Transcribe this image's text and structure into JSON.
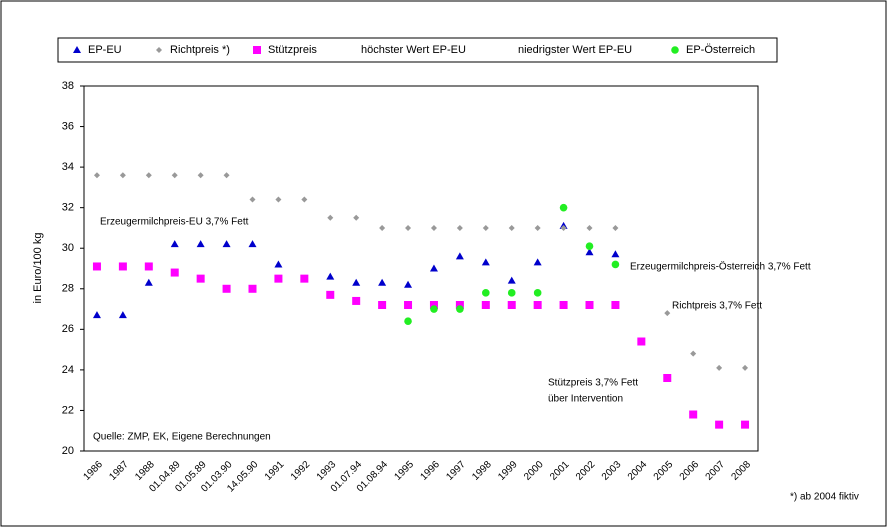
{
  "chart_data": {
    "type": "scatter",
    "y_label": "in Euro/100 kg",
    "categories": [
      "1986",
      "1987",
      "1988",
      "01.04.89",
      "01.05.89",
      "01.03.90",
      "14.05.90",
      "1991",
      "1992",
      "1993",
      "01.07.94",
      "01.08.94",
      "1995",
      "1996",
      "1997",
      "1998",
      "1999",
      "2000",
      "2001",
      "2002",
      "2003",
      "2004",
      "2005",
      "2006",
      "2007",
      "2008"
    ],
    "series": [
      {
        "name": "EP-EU",
        "color": "#0000cc",
        "marker": "triangle",
        "values": [
          26.7,
          26.7,
          28.3,
          30.2,
          30.2,
          30.2,
          30.2,
          29.2,
          null,
          28.6,
          28.3,
          28.3,
          28.2,
          29.0,
          29.6,
          29.3,
          28.4,
          29.3,
          31.1,
          29.8,
          29.7,
          null,
          null,
          null,
          null,
          null
        ]
      },
      {
        "name": "Richtpreis *)",
        "color": "#999999",
        "marker": "diamond",
        "values": [
          33.6,
          33.6,
          33.6,
          33.6,
          33.6,
          33.6,
          32.4,
          32.4,
          32.4,
          31.5,
          31.5,
          31.0,
          31.0,
          31.0,
          31.0,
          31.0,
          31.0,
          31.0,
          31.0,
          31.0,
          31.0,
          null,
          26.8,
          24.8,
          24.1,
          24.1
        ]
      },
      {
        "name": "Stützpreis",
        "color": "#ff00ff",
        "marker": "square",
        "values": [
          29.1,
          29.1,
          29.1,
          28.8,
          28.5,
          28.0,
          28.0,
          28.5,
          28.5,
          27.7,
          27.4,
          27.2,
          27.2,
          27.2,
          27.2,
          27.2,
          27.2,
          27.2,
          27.2,
          27.2,
          27.2,
          25.4,
          23.6,
          21.8,
          21.3,
          21.3
        ]
      },
      {
        "name": "höchster Wert EP-EU",
        "values": [
          null,
          null,
          null,
          null,
          null,
          null,
          null,
          null,
          null,
          null,
          null,
          null,
          null,
          null,
          null,
          null,
          null,
          null,
          null,
          null,
          null,
          null,
          null,
          null,
          null,
          null
        ]
      },
      {
        "name": "niedrigster Wert EP-EU",
        "values": [
          null,
          null,
          null,
          null,
          null,
          null,
          null,
          null,
          null,
          null,
          null,
          null,
          null,
          null,
          null,
          null,
          null,
          null,
          null,
          null,
          null,
          null,
          null,
          null,
          null,
          null
        ]
      },
      {
        "name": "EP-Österreich",
        "color": "#22ee22",
        "marker": "circle",
        "values": [
          null,
          null,
          null,
          null,
          null,
          null,
          null,
          null,
          null,
          null,
          null,
          null,
          26.4,
          27.0,
          27.0,
          27.8,
          27.8,
          27.8,
          32.0,
          30.1,
          29.2,
          null,
          null,
          null,
          null,
          null
        ]
      }
    ],
    "ylim": [
      20,
      38
    ],
    "yticks": [
      20,
      22,
      24,
      26,
      28,
      30,
      32,
      34,
      36,
      38
    ],
    "grid": false,
    "annotations": [
      "Erzeugermilchpreis-EU 3,7% Fett",
      "Erzeugermilchpreis-Österreich 3,7% Fett",
      "Richtpreis 3,7% Fett",
      "Stützpreis 3,7% Fett",
      "über Intervention",
      "Quelle: ZMP, EK, Eigene Berechnungen",
      "*) ab 2004 fiktiv"
    ]
  }
}
